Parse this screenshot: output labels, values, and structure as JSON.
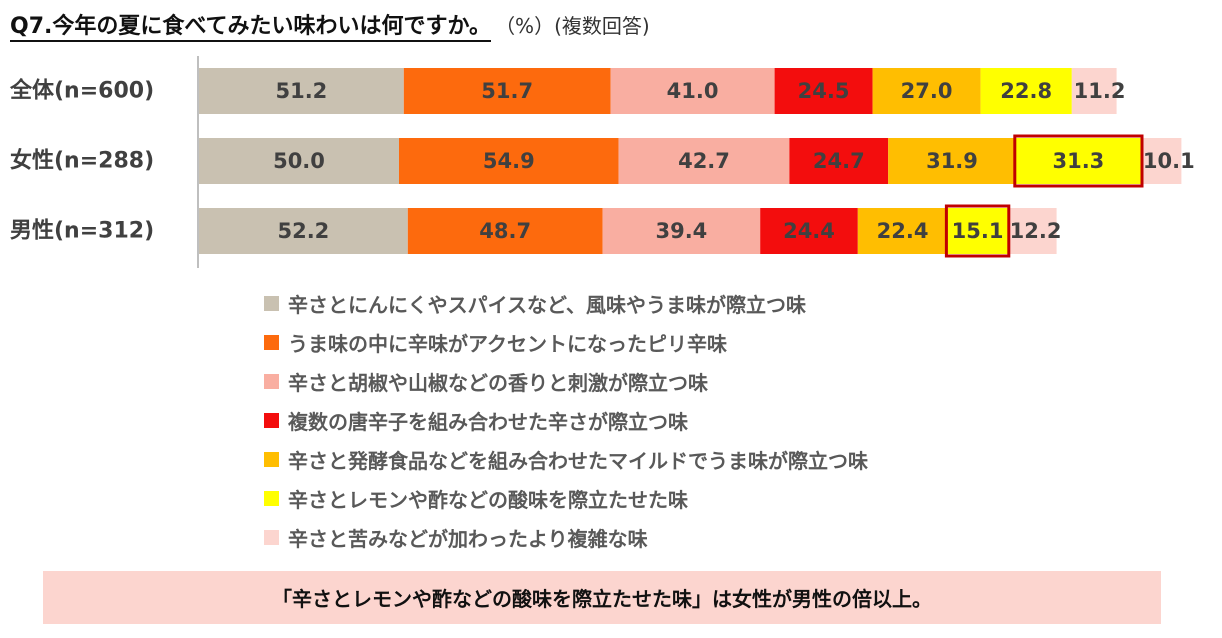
{
  "title": "Q7.今年の夏に食べてみたい味わいは何ですか。",
  "title_note": "（%）(複数回答)",
  "chart_data": {
    "type": "bar",
    "orientation": "horizontal",
    "stacked": true,
    "categories": [
      "全体(n=600)",
      "女性(n=288)",
      "男性(n=312)"
    ],
    "series": [
      {
        "name": "辛さとにんにくやスパイスなど、風味やうま味が際立つ味",
        "values": [
          51.2,
          50.0,
          52.2
        ],
        "color": "#c9c1b1"
      },
      {
        "name": "うま味の中に辛味がアクセントになったピリ辛味",
        "values": [
          51.7,
          54.9,
          48.7
        ],
        "color": "#fd6a0d"
      },
      {
        "name": "辛さと胡椒や山椒などの香りと刺激が際立つ味",
        "values": [
          41.0,
          42.7,
          39.4
        ],
        "color": "#f9aea1"
      },
      {
        "name": "複数の唐辛子を組み合わせた辛さが際立つ味",
        "values": [
          24.5,
          24.7,
          24.4
        ],
        "color": "#f30d0d"
      },
      {
        "name": "辛さと発酵食品などを組み合わせたマイルドでうま味が際立つ味",
        "values": [
          27.0,
          31.9,
          22.4
        ],
        "color": "#ffbe01"
      },
      {
        "name": "辛さとレモンや酢などの酸味を際立たせた味",
        "values": [
          22.8,
          31.3,
          15.1
        ],
        "color": "#ffff00"
      },
      {
        "name": "辛さと苦みなどが加わったより複雑な味",
        "values": [
          11.2,
          10.1,
          12.2
        ],
        "color": "#fcd5cf"
      }
    ],
    "value_labels": [
      [
        "51.2",
        "51.7",
        "41.0",
        "24.5",
        "27.0",
        "22.8",
        "11.2"
      ],
      [
        "50.0",
        "54.9",
        "42.7",
        "24.7",
        "31.9",
        "31.3",
        "10.1"
      ],
      [
        "52.2",
        "48.7",
        "39.4",
        "24.4",
        "22.4",
        "15.1",
        "12.2"
      ]
    ],
    "highlighted": [
      {
        "category": "女性(n=288)",
        "series": "辛さとレモンや酢などの酸味を際立たせた味"
      },
      {
        "category": "男性(n=312)",
        "series": "辛さとレモンや酢などの酸味を際立たせた味"
      }
    ],
    "highlight_color": "#c00000",
    "label_color": "#404040",
    "axis_line_color": "#bfbfbf"
  },
  "callout": "「辛さとレモンや酢などの酸味を際立たせた味」は女性が男性の倍以上。"
}
